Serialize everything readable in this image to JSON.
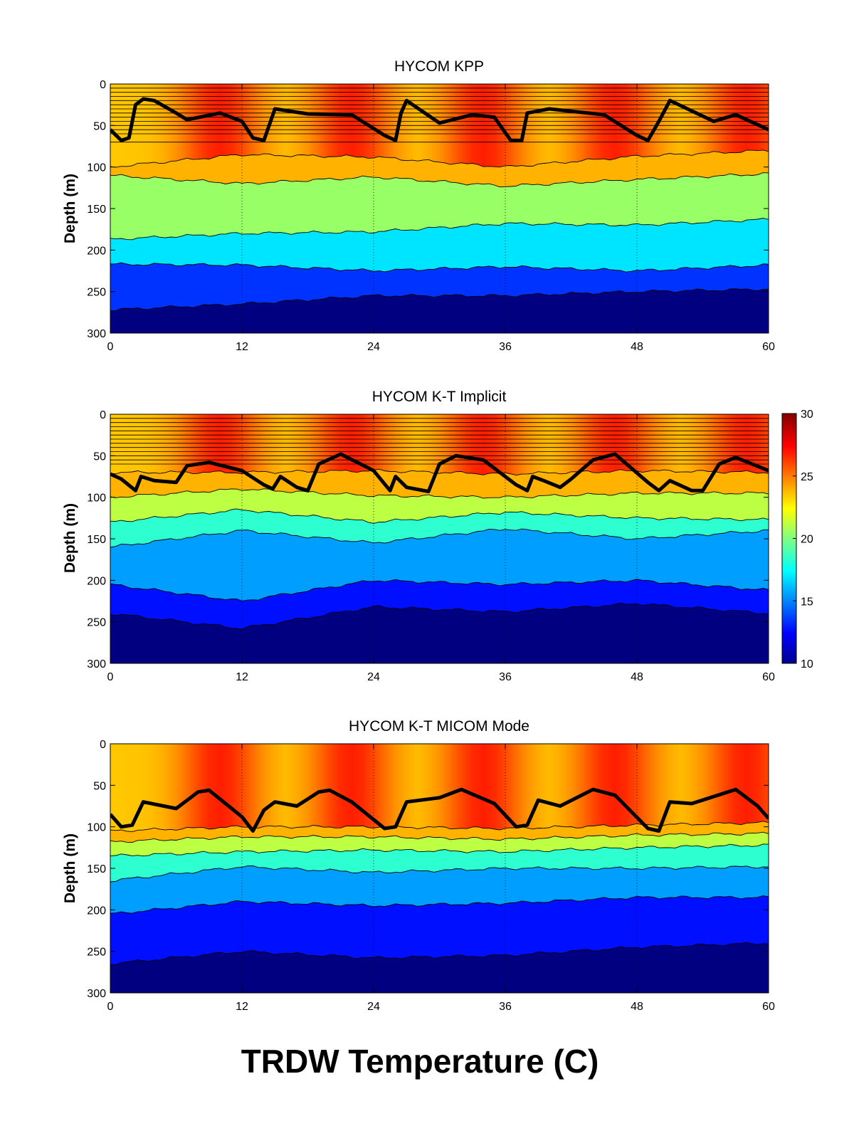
{
  "figure": {
    "title": "TRDW Temperature (C)",
    "colorbar": {
      "range": [
        10,
        30
      ],
      "ticks": [
        "30",
        "25",
        "20",
        "15",
        "10"
      ]
    }
  },
  "chart_data": [
    {
      "type": "heatmap",
      "title": "HYCOM KPP",
      "xlabel": "",
      "ylabel": "Depth (m)",
      "xlim": [
        0,
        60
      ],
      "ylim": [
        0,
        300
      ],
      "y_reversed": true,
      "xticks": [
        "0",
        "12",
        "24",
        "36",
        "48",
        "60"
      ],
      "yticks": [
        "0",
        "50",
        "100",
        "150",
        "200",
        "250",
        "300"
      ],
      "grid": "vertical dotted at x ticks",
      "fixed_levels": [
        5,
        10,
        15,
        20,
        25,
        30,
        35,
        40,
        45,
        50,
        55,
        60,
        70
      ],
      "mixed_layer_depth": {
        "x": [
          0,
          1,
          1.7,
          2.3,
          3,
          4,
          6,
          7,
          10,
          12,
          13,
          14,
          15,
          18,
          22,
          25,
          26,
          26.5,
          27,
          30,
          33,
          35,
          36.5,
          37.5,
          38,
          40,
          45,
          48,
          49,
          50,
          51,
          55,
          57,
          60
        ],
        "y": [
          55,
          68,
          65,
          25,
          18,
          20,
          35,
          43,
          35,
          45,
          65,
          68,
          30,
          36,
          37,
          62,
          68,
          35,
          20,
          47,
          37,
          40,
          68,
          68,
          35,
          30,
          37,
          62,
          68,
          45,
          20,
          45,
          37,
          55
        ]
      },
      "isotherm_depths": [
        {
          "x": [
            0,
            12,
            24,
            36,
            48,
            60
          ],
          "y": [
            100,
            85,
            88,
            100,
            87,
            80
          ]
        },
        {
          "x": [
            0,
            12,
            24,
            36,
            48,
            60
          ],
          "y": [
            110,
            120,
            112,
            123,
            115,
            108
          ]
        },
        {
          "x": [
            0,
            12,
            24,
            36,
            48,
            60
          ],
          "y": [
            187,
            180,
            178,
            168,
            170,
            163
          ]
        },
        {
          "x": [
            0,
            12,
            24,
            36,
            48,
            60
          ],
          "y": [
            217,
            218,
            225,
            220,
            225,
            218
          ]
        },
        {
          "x": [
            0,
            12,
            24,
            36,
            48,
            60
          ],
          "y": [
            272,
            265,
            255,
            255,
            250,
            247
          ]
        }
      ]
    },
    {
      "type": "heatmap",
      "title": "HYCOM K-T Implicit",
      "xlabel": "",
      "ylabel": "Depth (m)",
      "xlim": [
        0,
        60
      ],
      "ylim": [
        0,
        300
      ],
      "y_reversed": true,
      "xticks": [
        "0",
        "12",
        "24",
        "36",
        "48",
        "60"
      ],
      "yticks": [
        "0",
        "50",
        "100",
        "150",
        "200",
        "250",
        "300"
      ],
      "grid": "vertical dotted at x ticks",
      "fixed_levels": [
        5,
        10,
        15,
        20,
        25,
        30,
        35,
        40,
        45,
        50,
        55,
        60
      ],
      "mixed_layer_depth": {
        "x": [
          0,
          1,
          2.3,
          2.8,
          4,
          6,
          7,
          9,
          12,
          14,
          14.8,
          15.5,
          17,
          18,
          19,
          21,
          24,
          25.5,
          26,
          27,
          29,
          30,
          31.5,
          34,
          37,
          38,
          38.5,
          39.5,
          41,
          42,
          44,
          46,
          49,
          50,
          51,
          53,
          54,
          55.5,
          57,
          60
        ],
        "y": [
          72,
          78,
          92,
          75,
          80,
          82,
          62,
          58,
          68,
          85,
          90,
          75,
          88,
          92,
          60,
          48,
          68,
          92,
          75,
          88,
          93,
          60,
          50,
          55,
          85,
          92,
          75,
          80,
          88,
          78,
          55,
          48,
          82,
          92,
          80,
          92,
          92,
          60,
          52,
          68
        ]
      },
      "isotherm_depths": [
        {
          "x": [
            0,
            12,
            24,
            36,
            48,
            60
          ],
          "y": [
            70,
            70,
            68,
            72,
            68,
            70
          ]
        },
        {
          "x": [
            0,
            12,
            24,
            36,
            48,
            60
          ],
          "y": [
            100,
            90,
            98,
            100,
            95,
            95
          ]
        },
        {
          "x": [
            0,
            12,
            24,
            36,
            48,
            60
          ],
          "y": [
            130,
            115,
            130,
            118,
            125,
            127
          ]
        },
        {
          "x": [
            0,
            12,
            24,
            36,
            48,
            60
          ],
          "y": [
            160,
            140,
            155,
            138,
            150,
            140
          ]
        },
        {
          "x": [
            0,
            12,
            24,
            36,
            48,
            60
          ],
          "y": [
            205,
            225,
            200,
            205,
            200,
            212
          ]
        },
        {
          "x": [
            0,
            12,
            24,
            36,
            48,
            60
          ],
          "y": [
            240,
            258,
            232,
            238,
            228,
            240
          ]
        }
      ]
    },
    {
      "type": "heatmap",
      "title": "HYCOM K-T MICOM Mode",
      "xlabel": "",
      "ylabel": "Depth (m)",
      "xlim": [
        0,
        60
      ],
      "ylim": [
        0,
        300
      ],
      "y_reversed": true,
      "xticks": [
        "0",
        "12",
        "24",
        "36",
        "48",
        "60"
      ],
      "yticks": [
        "0",
        "50",
        "100",
        "150",
        "200",
        "250",
        "300"
      ],
      "grid": "vertical dotted at x ticks",
      "fixed_levels": [],
      "mixed_layer_depth": {
        "x": [
          0,
          1,
          2,
          3,
          6,
          8,
          9,
          12,
          13,
          14,
          15,
          17,
          19,
          20,
          22,
          25,
          26,
          27,
          30,
          32,
          35,
          37,
          38,
          39,
          41,
          44,
          46,
          49,
          50,
          51,
          53,
          57,
          59,
          60
        ],
        "y": [
          85,
          100,
          98,
          70,
          78,
          58,
          56,
          88,
          105,
          80,
          70,
          75,
          58,
          56,
          70,
          102,
          100,
          70,
          65,
          55,
          72,
          100,
          98,
          68,
          75,
          55,
          62,
          102,
          105,
          70,
          72,
          55,
          75,
          90
        ]
      },
      "isotherm_depths": [
        {
          "x": [
            0,
            12,
            24,
            36,
            48,
            60
          ],
          "y": [
            105,
            100,
            100,
            102,
            98,
            95
          ]
        },
        {
          "x": [
            0,
            12,
            24,
            36,
            48,
            60
          ],
          "y": [
            118,
            112,
            112,
            115,
            110,
            108
          ]
        },
        {
          "x": [
            0,
            12,
            24,
            36,
            48,
            60
          ],
          "y": [
            135,
            130,
            128,
            130,
            125,
            122
          ]
        },
        {
          "x": [
            0,
            12,
            24,
            36,
            48,
            60
          ],
          "y": [
            165,
            148,
            155,
            150,
            150,
            148
          ]
        },
        {
          "x": [
            0,
            12,
            24,
            36,
            48,
            60
          ],
          "y": [
            205,
            190,
            195,
            192,
            185,
            185
          ]
        },
        {
          "x": [
            0,
            12,
            24,
            36,
            48,
            60
          ],
          "y": [
            265,
            250,
            258,
            255,
            245,
            240
          ]
        }
      ]
    }
  ]
}
